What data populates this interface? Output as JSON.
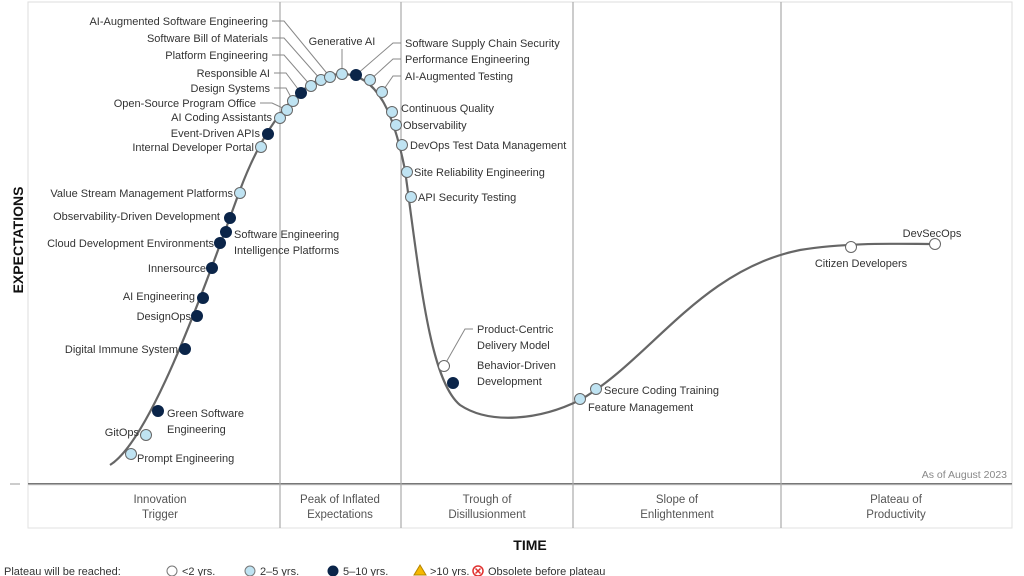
{
  "axis": {
    "y_label": "EXPECTATIONS",
    "x_label": "TIME"
  },
  "as_of": "As of August 2023",
  "phases": [
    [
      "Innovation",
      "Trigger"
    ],
    [
      "Peak of Inflated",
      "Expectations"
    ],
    [
      "Trough of",
      "Disillusionment"
    ],
    [
      "Slope of",
      "Enlightenment"
    ],
    [
      "Plateau of",
      "Productivity"
    ]
  ],
  "colors": {
    "lt2": "#ffffff",
    "2to5": "#bfe3f2",
    "5to10": "#0b2549",
    "gt10": "#f5b800",
    "obsolete": "#e0312f",
    "curve": "#666666"
  },
  "legend": {
    "title": "Plateau will be reached:",
    "items": [
      {
        "key": "lt2",
        "label": "<2 yrs."
      },
      {
        "key": "2to5",
        "label": "2–5 yrs."
      },
      {
        "key": "5to10",
        "label": "5–10 yrs."
      },
      {
        "key": "gt10",
        "label": ">10 yrs."
      },
      {
        "key": "obsolete",
        "label": "Obsolete before plateau"
      }
    ]
  },
  "technologies": [
    {
      "label": [
        "Prompt Engineering"
      ],
      "plateau": "2to5"
    },
    {
      "label": [
        "GitOps"
      ],
      "plateau": "2to5"
    },
    {
      "label": [
        "Green Software",
        "Engineering"
      ],
      "plateau": "5to10"
    },
    {
      "label": [
        "Digital Immune System"
      ],
      "plateau": "5to10"
    },
    {
      "label": [
        "DesignOps"
      ],
      "plateau": "5to10"
    },
    {
      "label": [
        "AI Engineering"
      ],
      "plateau": "5to10"
    },
    {
      "label": [
        "Innersource"
      ],
      "plateau": "5to10"
    },
    {
      "label": [
        "Cloud Development Environments"
      ],
      "plateau": "5to10"
    },
    {
      "label": [
        "Software Engineering",
        "Intelligence Platforms"
      ],
      "plateau": "5to10"
    },
    {
      "label": [
        "Observability-Driven Development"
      ],
      "plateau": "5to10"
    },
    {
      "label": [
        "Value Stream Management Platforms"
      ],
      "plateau": "2to5"
    },
    {
      "label": [
        "Internal Developer Portal"
      ],
      "plateau": "2to5"
    },
    {
      "label": [
        "Event-Driven APIs"
      ],
      "plateau": "5to10"
    },
    {
      "label": [
        "AI Coding Assistants"
      ],
      "plateau": "2to5"
    },
    {
      "label": [
        "Open-Source Program Office"
      ],
      "plateau": "2to5"
    },
    {
      "label": [
        "Design Systems"
      ],
      "plateau": "2to5"
    },
    {
      "label": [
        "Responsible AI"
      ],
      "plateau": "5to10"
    },
    {
      "label": [
        "Platform Engineering"
      ],
      "plateau": "2to5"
    },
    {
      "label": [
        "Software Bill of Materials"
      ],
      "plateau": "2to5"
    },
    {
      "label": [
        "AI-Augmented Software Engineering"
      ],
      "plateau": "2to5"
    },
    {
      "label": [
        "Generative AI"
      ],
      "plateau": "2to5"
    },
    {
      "label": [
        "Software Supply Chain Security"
      ],
      "plateau": "5to10"
    },
    {
      "label": [
        "Performance Engineering"
      ],
      "plateau": "2to5"
    },
    {
      "label": [
        "AI-Augmented Testing"
      ],
      "plateau": "2to5"
    },
    {
      "label": [
        "Continuous Quality"
      ],
      "plateau": "2to5"
    },
    {
      "label": [
        "Observability"
      ],
      "plateau": "2to5"
    },
    {
      "label": [
        "DevOps Test Data Management"
      ],
      "plateau": "2to5"
    },
    {
      "label": [
        "Site Reliability Engineering"
      ],
      "plateau": "2to5"
    },
    {
      "label": [
        "API Security Testing"
      ],
      "plateau": "2to5"
    },
    {
      "label": [
        "Product-Centric",
        "Delivery Model"
      ],
      "plateau": "lt2"
    },
    {
      "label": [
        "Behavior-Driven",
        "Development"
      ],
      "plateau": "5to10"
    },
    {
      "label": [
        "Feature Management"
      ],
      "plateau": "2to5"
    },
    {
      "label": [
        "Secure Coding Training"
      ],
      "plateau": "2to5"
    },
    {
      "label": [
        "Citizen Developers"
      ],
      "plateau": "lt2"
    },
    {
      "label": [
        "DevSecOps"
      ],
      "plateau": "lt2"
    }
  ]
}
